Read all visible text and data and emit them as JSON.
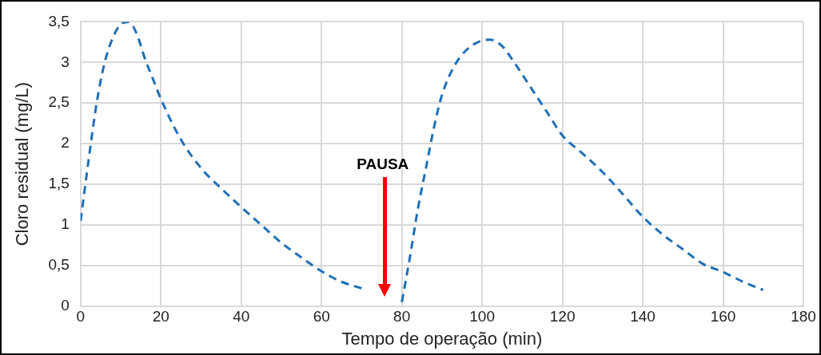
{
  "chart_data": {
    "type": "line",
    "xlabel": "Tempo de operação (min)",
    "ylabel": "Cloro residual (mg/L)",
    "x": [
      0,
      2,
      4,
      6,
      8,
      10,
      12,
      14,
      16,
      18,
      20,
      25,
      30,
      35,
      40,
      45,
      50,
      55,
      60,
      65,
      70,
      75,
      80,
      82,
      84,
      86,
      88,
      90,
      93,
      96,
      100,
      102,
      105,
      108,
      112,
      116,
      120,
      125,
      130,
      135,
      140,
      145,
      150,
      155,
      160,
      165,
      170
    ],
    "series": [
      {
        "color": "#1f6fb8",
        "values": [
          1.05,
          1.8,
          2.5,
          3.0,
          3.3,
          3.47,
          3.5,
          3.35,
          3.05,
          2.8,
          2.55,
          2.05,
          1.7,
          1.45,
          1.22,
          1.0,
          0.78,
          0.6,
          0.43,
          0.3,
          0.22,
          null,
          0.05,
          0.6,
          1.2,
          1.7,
          2.2,
          2.6,
          2.95,
          3.15,
          3.27,
          3.28,
          3.2,
          3.0,
          2.7,
          2.4,
          2.1,
          1.88,
          1.65,
          1.38,
          1.1,
          0.88,
          0.7,
          0.52,
          0.42,
          0.3,
          0.2
        ]
      }
    ],
    "xlim": [
      0,
      180
    ],
    "xticks": [
      0,
      20,
      40,
      60,
      80,
      100,
      120,
      140,
      160,
      180
    ],
    "ylim": [
      0,
      3.5
    ],
    "yticks": [
      {
        "value": 0,
        "label": "0"
      },
      {
        "value": 0.5,
        "label": "0,5"
      },
      {
        "value": 1,
        "label": "1"
      },
      {
        "value": 1.5,
        "label": "1,5"
      },
      {
        "value": 2,
        "label": "2"
      },
      {
        "value": 2.5,
        "label": "2,5"
      },
      {
        "value": 3,
        "label": "3"
      },
      {
        "value": 3.5,
        "label": "3,5"
      }
    ],
    "annotations": [
      "PAUSA"
    ],
    "grid": true,
    "legend": false,
    "marker": "none",
    "line_style": "dashed"
  }
}
